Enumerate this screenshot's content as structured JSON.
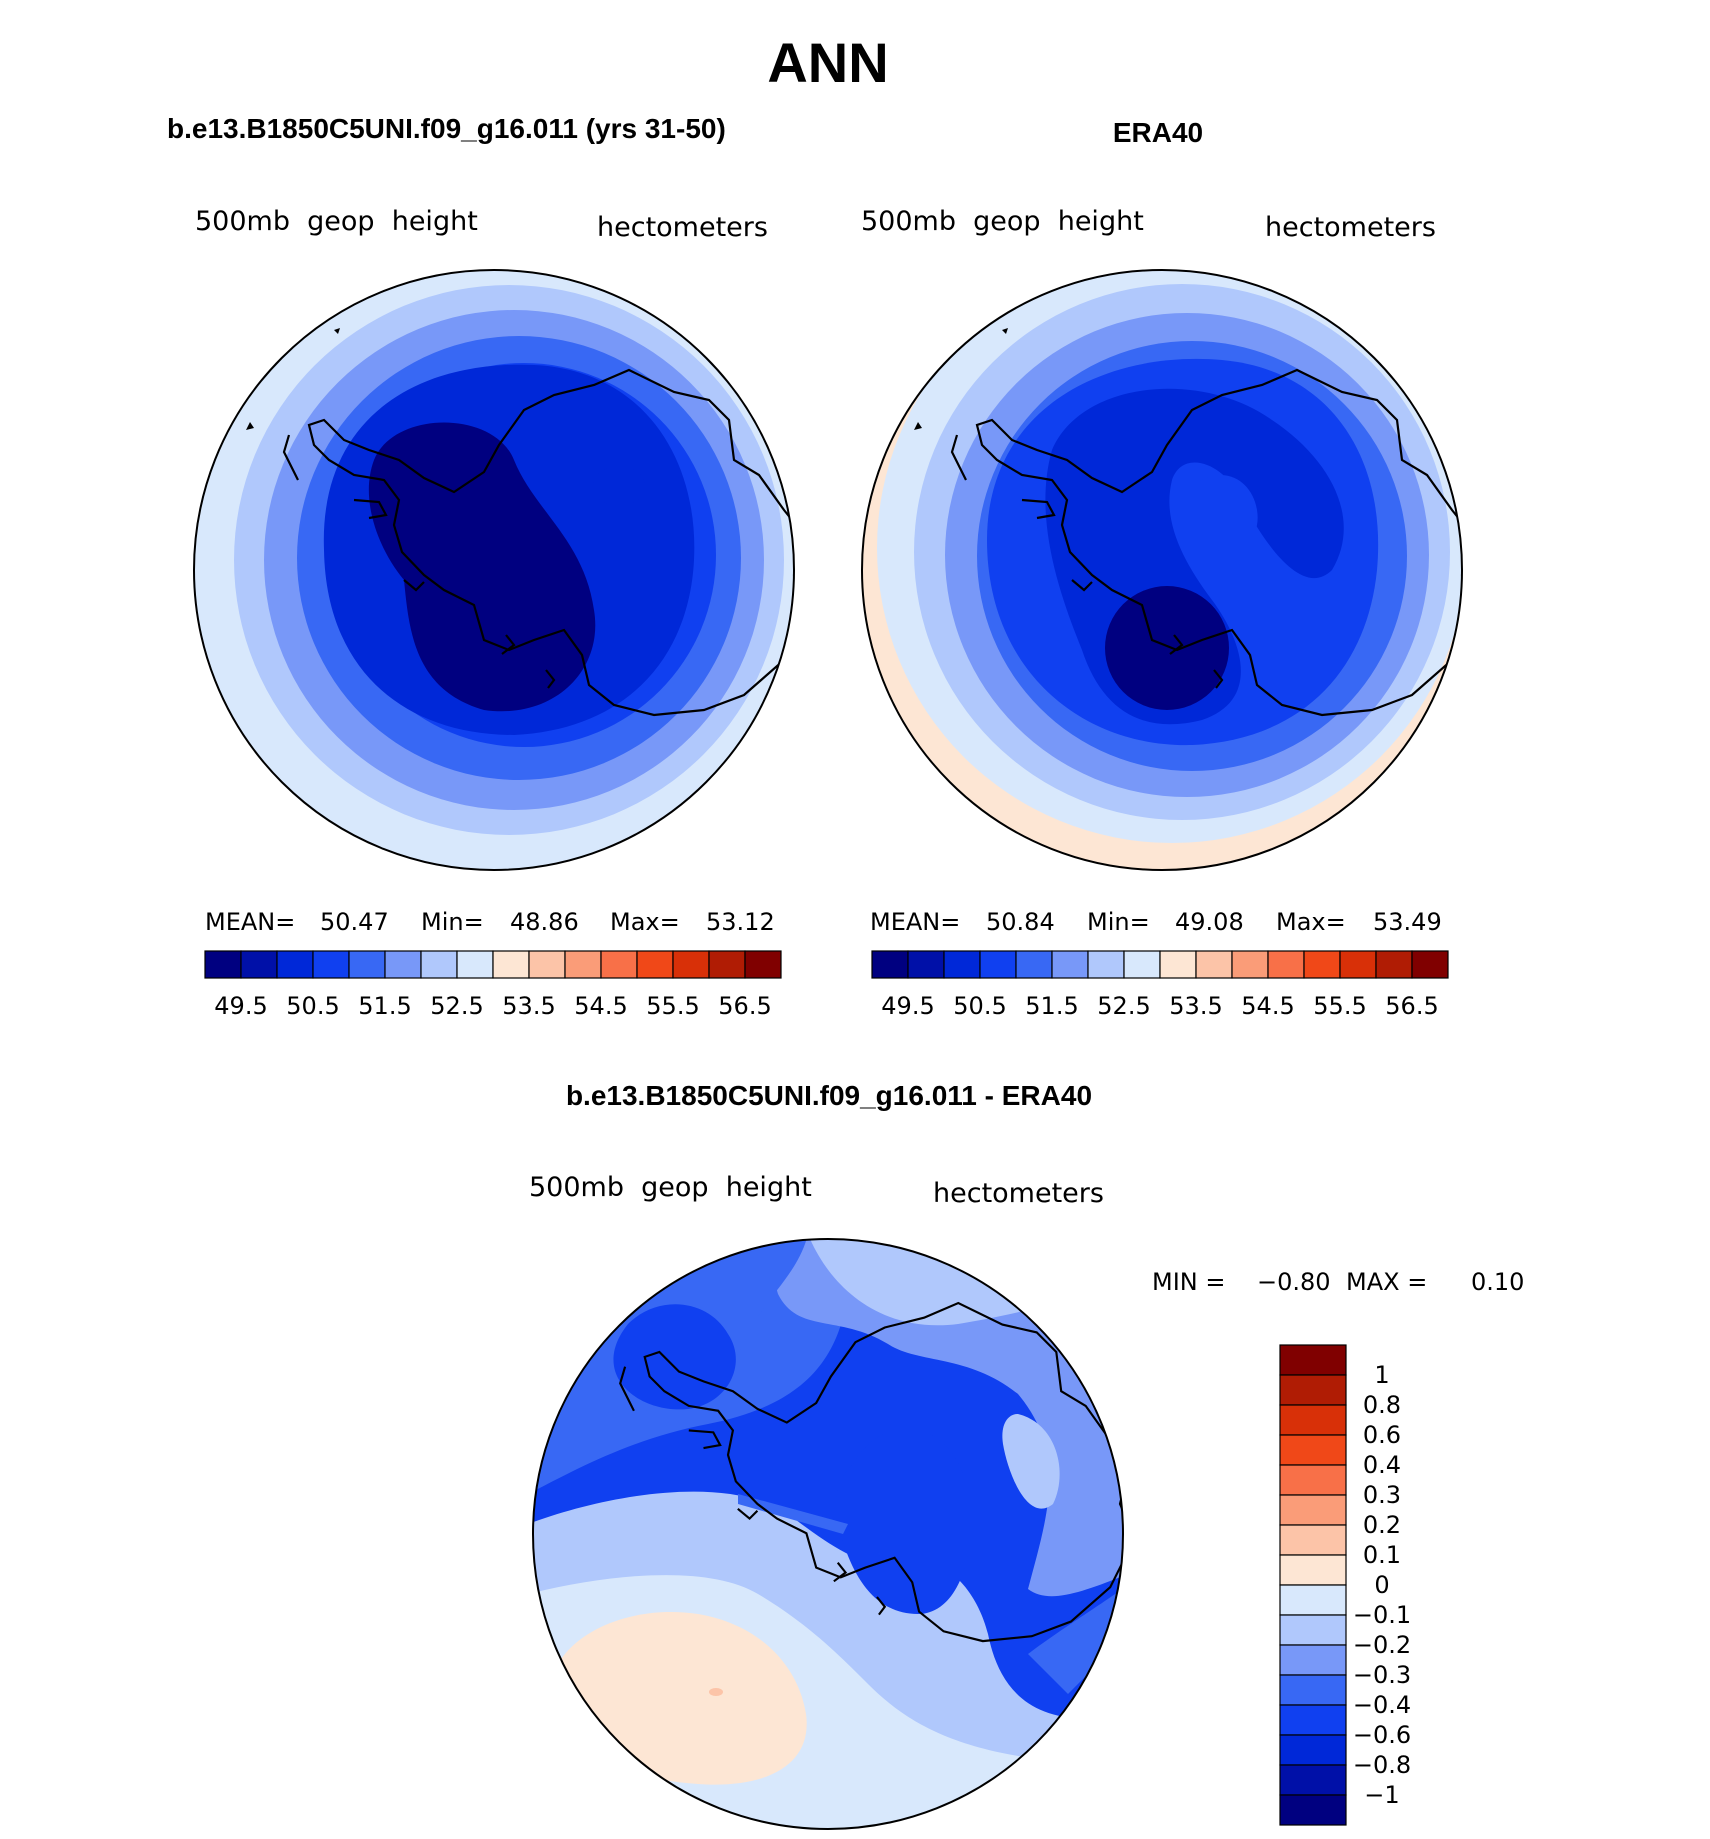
{
  "title": "ANN",
  "panels": [
    {
      "id": "model",
      "heading": "b.e13.B1850C5UNI.f09_g16.011 (yrs 31-50)",
      "variable": "500mb  geop  height",
      "units": "hectometers",
      "stats": {
        "mean_label": "MEAN=",
        "mean": "50.47",
        "min_label": "Min=",
        "min": "48.86",
        "max_label": "Max=",
        "max": "53.12"
      },
      "colorbar_labels": [
        "49.5",
        "50.5",
        "51.5",
        "52.5",
        "53.5",
        "54.5",
        "55.5",
        "56.5"
      ]
    },
    {
      "id": "obs",
      "heading": "ERA40",
      "variable": "500mb  geop  height",
      "units": "hectometers",
      "stats": {
        "mean_label": "MEAN=",
        "mean": "50.84",
        "min_label": "Min=",
        "min": "49.08",
        "max_label": "Max=",
        "max": "53.49"
      },
      "colorbar_labels": [
        "49.5",
        "50.5",
        "51.5",
        "52.5",
        "53.5",
        "54.5",
        "55.5",
        "56.5"
      ]
    }
  ],
  "diff": {
    "heading": "b.e13.B1850C5UNI.f09_g16.011 - ERA40",
    "variable": "500mb  geop  height",
    "units": "hectometers",
    "minmax": {
      "min_label": "MIN =",
      "min": "−0.80",
      "max_label": "MAX =",
      "max": "0.10"
    },
    "colorbar_labels": [
      "1",
      "0.8",
      "0.6",
      "0.4",
      "0.3",
      "0.2",
      "0.1",
      "0",
      "−0.1",
      "−0.2",
      "−0.3",
      "−0.4",
      "−0.6",
      "−0.8",
      "−1"
    ]
  },
  "colors": {
    "abs_scale": [
      "#000080",
      "#0010a8",
      "#0028d8",
      "#1040f0",
      "#3868f4",
      "#7898f8",
      "#b0c8fc",
      "#d8e8fc",
      "#fde6d4",
      "#fcc4a8",
      "#fa9c78",
      "#f87048",
      "#f04818",
      "#d83008",
      "#b01c04",
      "#800000"
    ],
    "diff_scale_top_down": [
      "#800000",
      "#b01c04",
      "#d83008",
      "#f04818",
      "#f87048",
      "#fa9c78",
      "#fcc4a8",
      "#fde6d4",
      "#d8e8fc",
      "#b0c8fc",
      "#7898f8",
      "#3868f4",
      "#1040f0",
      "#0028d8",
      "#0010a8",
      "#000080"
    ]
  }
}
